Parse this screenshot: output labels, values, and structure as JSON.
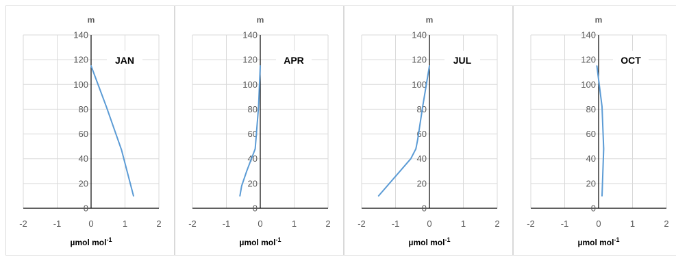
{
  "chart_data": [
    {
      "type": "line",
      "title": "JAN",
      "xlabel": "µmol mol",
      "xlabel_superscript": "-1",
      "ylabel": "m",
      "xlim": [
        -2,
        2
      ],
      "ylim": [
        0,
        140
      ],
      "x_ticks": [
        "-2",
        "-1",
        "0",
        "1",
        "2"
      ],
      "y_ticks": [
        "0",
        "20",
        "40",
        "60",
        "80",
        "100",
        "120",
        "140"
      ],
      "grid": true,
      "series": [
        {
          "points": [
            [
              0.0,
              115
            ],
            [
              0.45,
              82
            ],
            [
              0.9,
              47
            ],
            [
              1.25,
              10
            ]
          ]
        }
      ]
    },
    {
      "type": "line",
      "title": "APR",
      "xlabel": "µmol mol",
      "xlabel_superscript": "-1",
      "ylabel": "m",
      "xlim": [
        -2,
        2
      ],
      "ylim": [
        0,
        140
      ],
      "x_ticks": [
        "-2",
        "-1",
        "0",
        "1",
        "2"
      ],
      "y_ticks": [
        "0",
        "20",
        "40",
        "60",
        "80",
        "100",
        "120",
        "140"
      ],
      "grid": true,
      "series": [
        {
          "points": [
            [
              0.0,
              115
            ],
            [
              -0.05,
              82
            ],
            [
              -0.15,
              48
            ],
            [
              -0.4,
              30
            ],
            [
              -0.55,
              18
            ],
            [
              -0.6,
              10
            ]
          ]
        }
      ]
    },
    {
      "type": "line",
      "title": "JUL",
      "xlabel": "µmol mol",
      "xlabel_superscript": "-1",
      "ylabel": "m",
      "xlim": [
        -2,
        2
      ],
      "ylim": [
        0,
        140
      ],
      "x_ticks": [
        "-2",
        "-1",
        "0",
        "1",
        "2"
      ],
      "y_ticks": [
        "0",
        "20",
        "40",
        "60",
        "80",
        "100",
        "120",
        "140"
      ],
      "grid": true,
      "series": [
        {
          "points": [
            [
              0.0,
              115
            ],
            [
              -0.2,
              82
            ],
            [
              -0.35,
              55
            ],
            [
              -0.4,
              48
            ],
            [
              -0.55,
              40
            ],
            [
              -1.5,
              10
            ]
          ]
        }
      ]
    },
    {
      "type": "line",
      "title": "OCT",
      "xlabel": "µmol mol",
      "xlabel_superscript": "-1",
      "ylabel": "m",
      "xlim": [
        -2,
        2
      ],
      "ylim": [
        0,
        140
      ],
      "x_ticks": [
        "-2",
        "-1",
        "0",
        "1",
        "2"
      ],
      "y_ticks": [
        "0",
        "20",
        "40",
        "60",
        "80",
        "100",
        "120",
        "140"
      ],
      "grid": true,
      "series": [
        {
          "points": [
            [
              -0.05,
              115
            ],
            [
              0.1,
              82
            ],
            [
              0.15,
              48
            ],
            [
              0.1,
              10
            ]
          ]
        }
      ]
    }
  ],
  "colors": {
    "line": "#5b9bd5",
    "grid": "#d9d9d9",
    "axis": "#000000",
    "panel_border": "#d9d9d9"
  }
}
